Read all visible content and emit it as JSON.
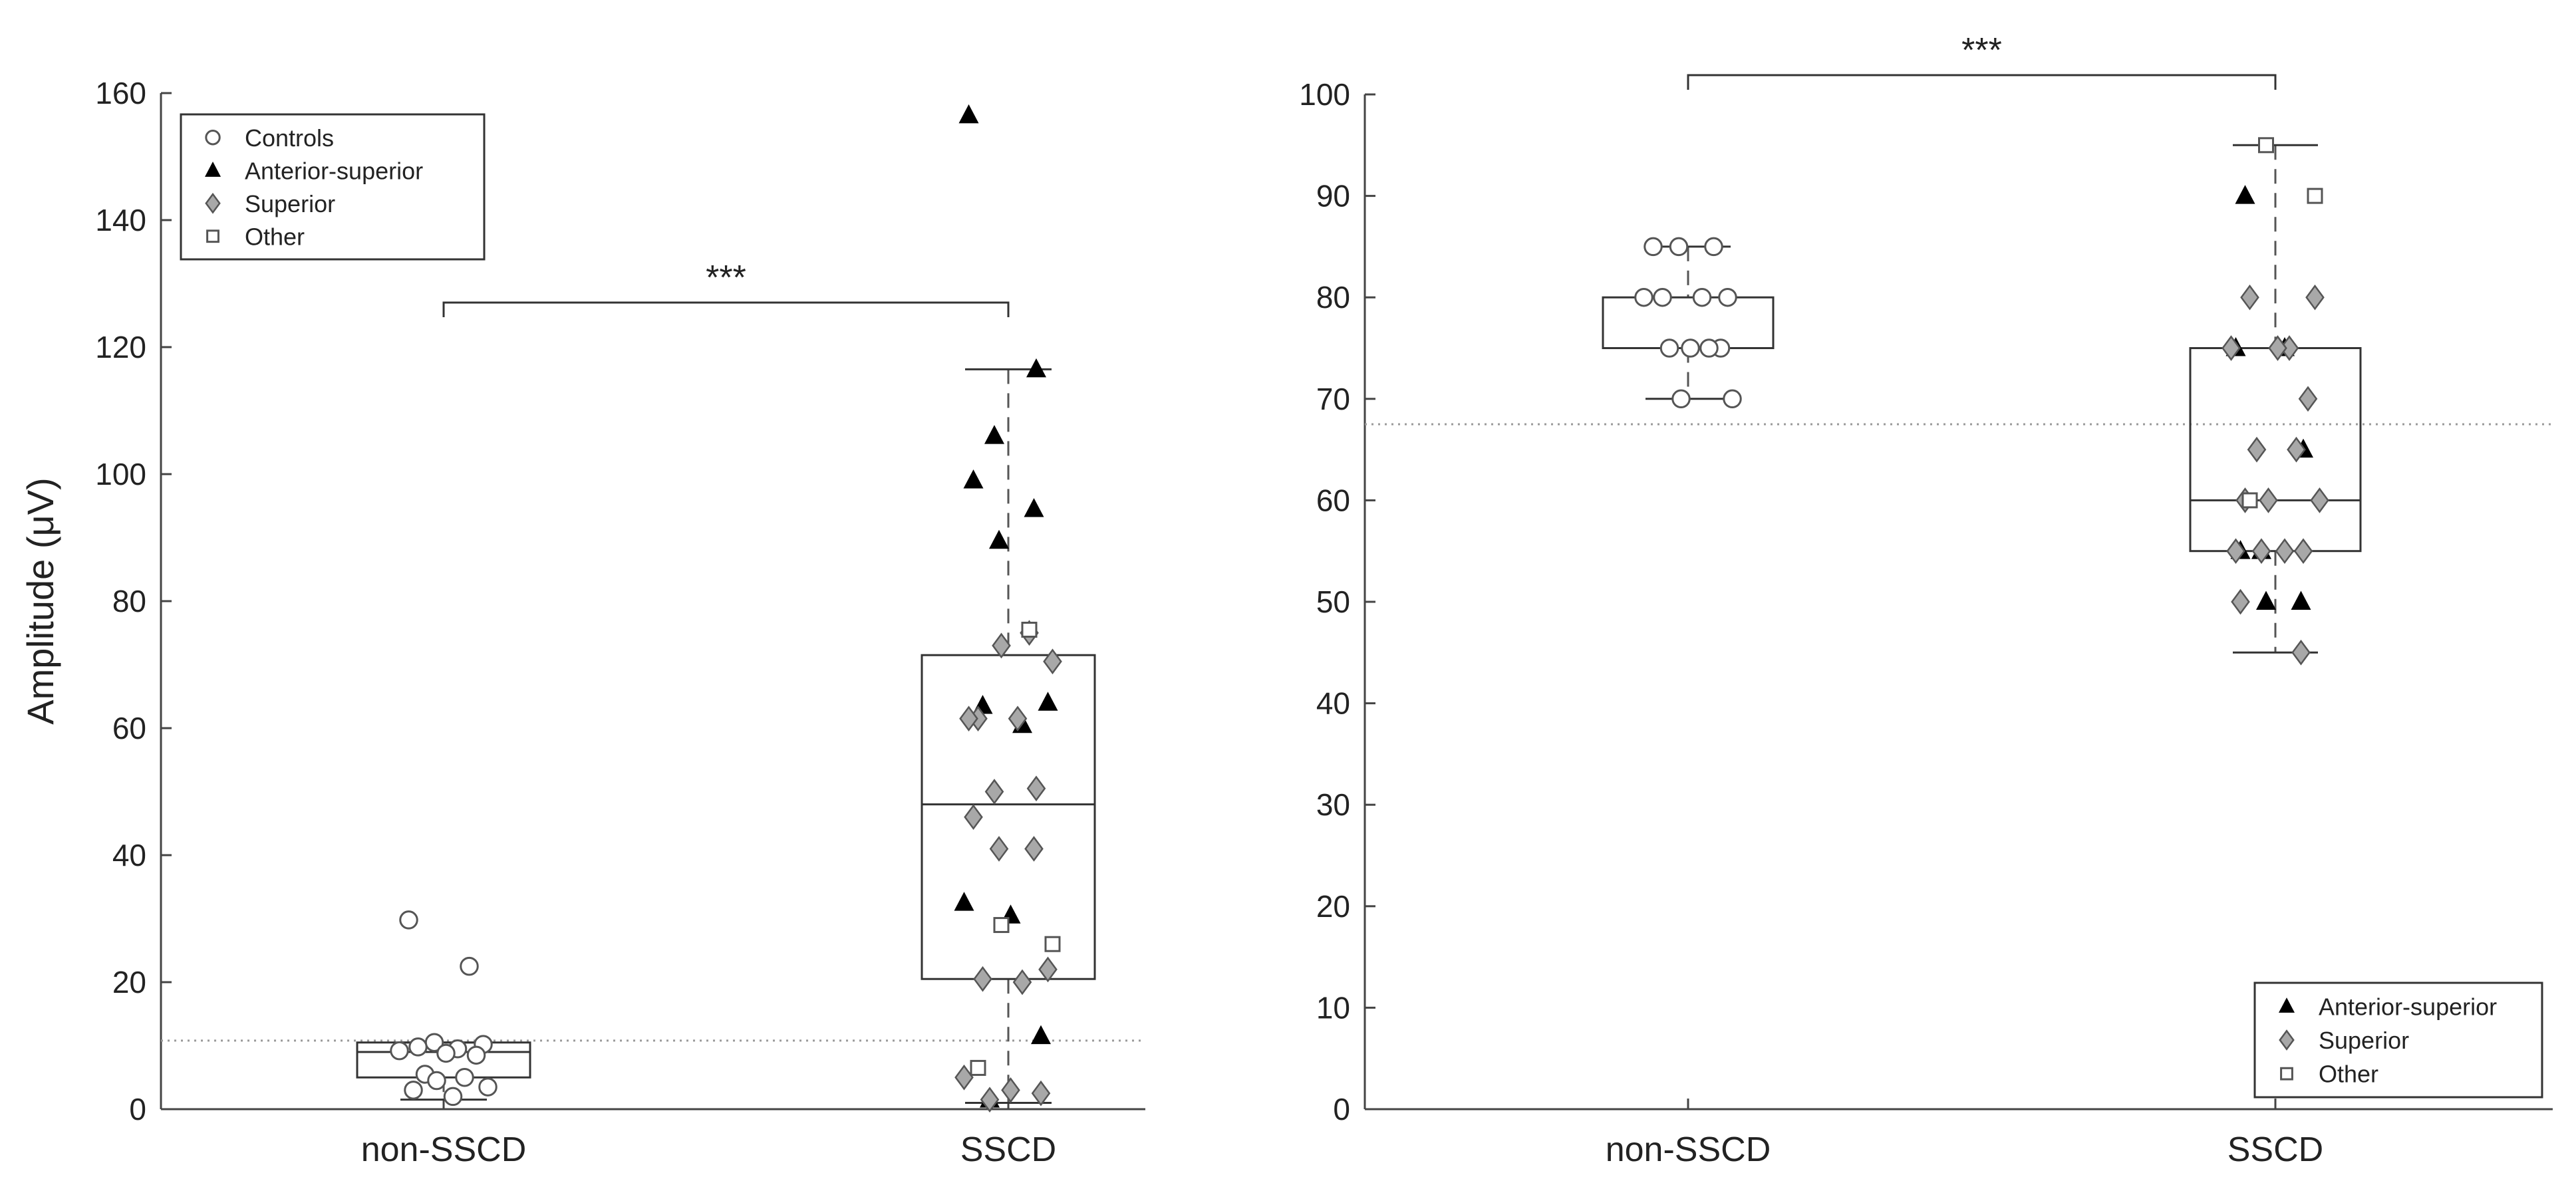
{
  "chart_data": [
    {
      "type": "box",
      "ylabel": "Amplitude (μV)",
      "ylim": [
        0,
        160
      ],
      "yticks": [
        "0",
        "20",
        "40",
        "60",
        "80",
        "100",
        "120",
        "140",
        "160"
      ],
      "categories": [
        "non-SSCD",
        "SSCD"
      ],
      "threshold": 10.8,
      "significance": {
        "between": [
          "non-SSCD",
          "SSCD"
        ],
        "label": "***"
      },
      "legend": {
        "placement": "top-left",
        "entries": [
          {
            "label": "Controls",
            "marker": "circle-open"
          },
          {
            "label": "Anterior-superior",
            "marker": "triangle-filled"
          },
          {
            "label": "Superior",
            "marker": "diamond-gray"
          },
          {
            "label": "Other",
            "marker": "square-open"
          }
        ]
      },
      "boxes": [
        {
          "category": "non-SSCD",
          "whisker_low": 1.5,
          "q1": 5,
          "median": 9,
          "q3": 10.5,
          "whisker_high": 10.5
        },
        {
          "category": "SSCD",
          "whisker_low": 1,
          "q1": 20.5,
          "median": 48,
          "q3": 71.5,
          "whisker_high": 116.5
        }
      ],
      "points": [
        {
          "category": "non-SSCD",
          "group": "Controls",
          "values": [
            29.8,
            22.5,
            10.5,
            10.2,
            9.8,
            9.5,
            9.2,
            8.8,
            8.5,
            5.5,
            5,
            4.5,
            3.5,
            3,
            2
          ]
        },
        {
          "category": "SSCD",
          "group": "Anterior-superior",
          "values": [
            156.5,
            116.5,
            106,
            99,
            94.5,
            89.5,
            64,
            63.5,
            60.5,
            32.5,
            30.5,
            11.5,
            1.5
          ]
        },
        {
          "category": "SSCD",
          "group": "Superior",
          "values": [
            75,
            73,
            70.5,
            61.5,
            61.5,
            61.5,
            50.5,
            50,
            46,
            41,
            41,
            22,
            20.5,
            20,
            5,
            3,
            2.5,
            1.5
          ]
        },
        {
          "category": "SSCD",
          "group": "Other",
          "values": [
            75.5,
            29,
            26,
            6.5
          ]
        }
      ]
    },
    {
      "type": "box",
      "ylabel": "",
      "ylim": [
        0,
        100
      ],
      "yticks": [
        "0",
        "10",
        "20",
        "30",
        "40",
        "50",
        "60",
        "70",
        "80",
        "90",
        "100"
      ],
      "categories": [
        "non-SSCD",
        "SSCD"
      ],
      "threshold": 67.5,
      "significance": {
        "between": [
          "non-SSCD",
          "SSCD"
        ],
        "label": "***"
      },
      "legend": {
        "placement": "bottom-right",
        "entries": [
          {
            "label": "Anterior-superior",
            "marker": "triangle-filled"
          },
          {
            "label": "Superior",
            "marker": "diamond-gray"
          },
          {
            "label": "Other",
            "marker": "square-open"
          }
        ]
      },
      "boxes": [
        {
          "category": "non-SSCD",
          "whisker_low": 70,
          "q1": 75,
          "median": 75,
          "q3": 80,
          "whisker_high": 85
        },
        {
          "category": "SSCD",
          "whisker_low": 45,
          "q1": 55,
          "median": 60,
          "q3": 75,
          "whisker_high": 95
        }
      ],
      "points": [
        {
          "category": "non-SSCD",
          "group": "Controls",
          "values": [
            85,
            85,
            85,
            80,
            80,
            80,
            80,
            75,
            75,
            75,
            75,
            70,
            70
          ]
        },
        {
          "category": "SSCD",
          "group": "Anterior-superior",
          "values": [
            90,
            75,
            75,
            65,
            55,
            55,
            50,
            50
          ]
        },
        {
          "category": "SSCD",
          "group": "Superior",
          "values": [
            80,
            80,
            75,
            75,
            75,
            70,
            65,
            65,
            60,
            60,
            60,
            55,
            55,
            55,
            55,
            50,
            45
          ]
        },
        {
          "category": "SSCD",
          "group": "Other",
          "values": [
            95,
            90,
            60
          ]
        }
      ]
    }
  ],
  "colors": {
    "axis": "#444444",
    "box": "#333333",
    "threshold": "#9a9a9a",
    "triangle": "#000000",
    "diamond": "#a8a8a8"
  }
}
